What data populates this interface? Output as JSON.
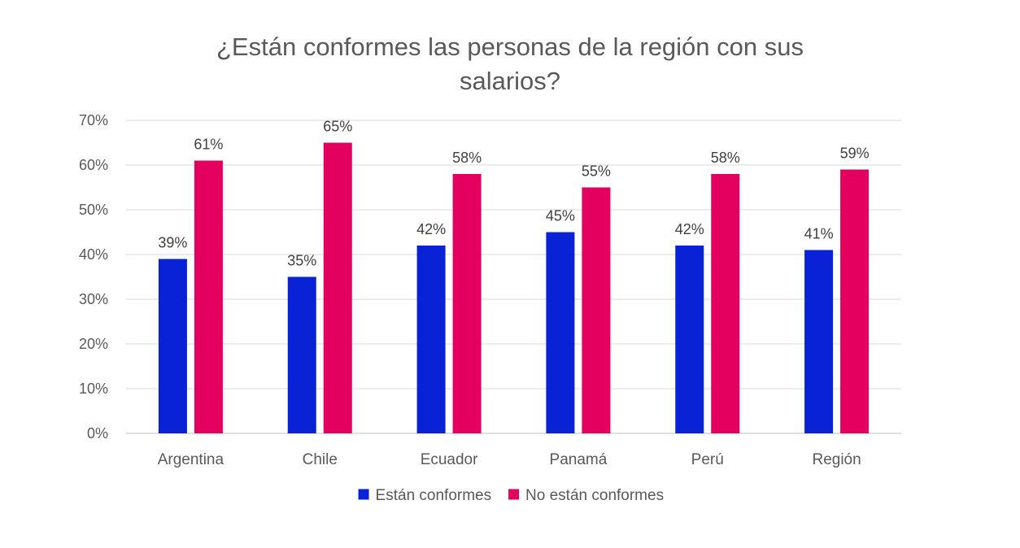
{
  "chart_data": {
    "type": "bar",
    "title": "¿Están conformes las personas de la región con sus salarios?",
    "title_lines": [
      "¿Están conformes las personas de la región con sus",
      "salarios?"
    ],
    "categories": [
      "Argentina",
      "Chile",
      "Ecuador",
      "Panamá",
      "Perú",
      "Región"
    ],
    "series": [
      {
        "name": "Están conformes",
        "color": "#0a22d6",
        "values": [
          39,
          35,
          42,
          45,
          42,
          41
        ],
        "labels": [
          "39%",
          "35%",
          "42%",
          "45%",
          "42%",
          "41%"
        ]
      },
      {
        "name": "No están conformes",
        "color": "#e4005f",
        "values": [
          61,
          65,
          58,
          55,
          58,
          59
        ],
        "labels": [
          "61%",
          "65%",
          "58%",
          "55%",
          "58%",
          "59%"
        ]
      }
    ],
    "ylim": [
      0,
      70
    ],
    "yticks": [
      0,
      10,
      20,
      30,
      40,
      50,
      60,
      70
    ],
    "ytick_labels": [
      "0%",
      "10%",
      "20%",
      "30%",
      "40%",
      "50%",
      "60%",
      "70%"
    ],
    "grid": true,
    "legend_position": "bottom",
    "xlabel": "",
    "ylabel": ""
  }
}
